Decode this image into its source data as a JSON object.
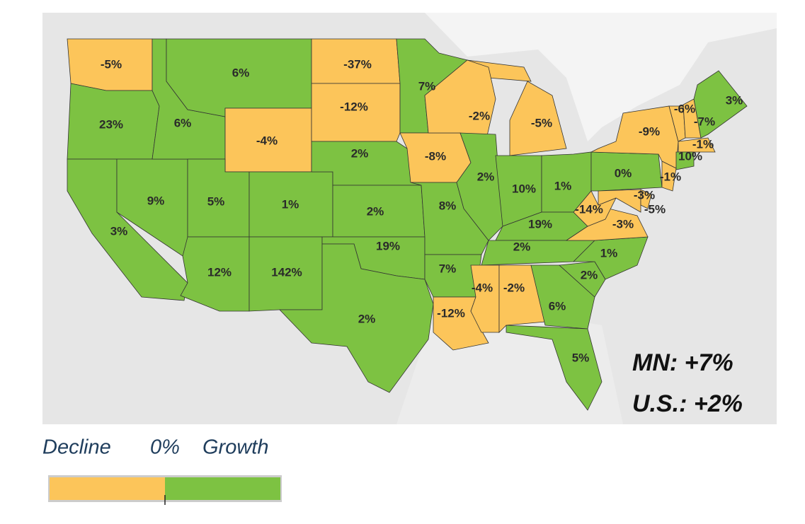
{
  "states": [
    {
      "label": "-5%",
      "color": "#fcc55a"
    },
    {
      "label": "23%",
      "color": "#7dc242"
    },
    {
      "label": "3%",
      "color": "#7dc242"
    },
    {
      "label": "9%",
      "color": "#7dc242"
    },
    {
      "label": "6%",
      "color": "#7dc242"
    },
    {
      "label": "6%",
      "color": "#7dc242"
    },
    {
      "label": "-4%",
      "color": "#fcc55a"
    },
    {
      "label": "5%",
      "color": "#7dc242"
    },
    {
      "label": "1%",
      "color": "#7dc242"
    },
    {
      "label": "12%",
      "color": "#7dc242"
    },
    {
      "label": "142%",
      "color": "#7dc242"
    },
    {
      "label": "-37%",
      "color": "#fcc55a"
    },
    {
      "label": "-12%",
      "color": "#fcc55a"
    },
    {
      "label": "2%",
      "color": "#7dc242"
    },
    {
      "label": "2%",
      "color": "#7dc242"
    },
    {
      "label": "19%",
      "color": "#7dc242"
    },
    {
      "label": "2%",
      "color": "#7dc242"
    },
    {
      "label": "7%",
      "color": "#7dc242"
    },
    {
      "label": "-8%",
      "color": "#fcc55a"
    },
    {
      "label": "8%",
      "color": "#7dc242"
    },
    {
      "label": "7%",
      "color": "#7dc242"
    },
    {
      "label": "-12%",
      "color": "#fcc55a"
    },
    {
      "label": "-2%",
      "color": "#fcc55a"
    },
    {
      "label": "2%",
      "color": "#7dc242"
    },
    {
      "label": "-5%",
      "color": "#fcc55a"
    },
    {
      "label": "10%",
      "color": "#7dc242"
    },
    {
      "label": "1%",
      "color": "#7dc242"
    },
    {
      "label": "19%",
      "color": "#7dc242"
    },
    {
      "label": "2%",
      "color": "#7dc242"
    },
    {
      "label": "-4%",
      "color": "#fcc55a"
    },
    {
      "label": "-2%",
      "color": "#fcc55a"
    },
    {
      "label": "6%",
      "color": "#7dc242"
    },
    {
      "label": "5%",
      "color": "#7dc242"
    },
    {
      "label": "2%",
      "color": "#7dc242"
    },
    {
      "label": "1%",
      "color": "#7dc242"
    },
    {
      "label": "-3%",
      "color": "#fcc55a"
    },
    {
      "label": "-14%",
      "color": "#fcc55a"
    },
    {
      "label": "0%",
      "color": "#7dc242"
    },
    {
      "label": "-9%",
      "color": "#fcc55a"
    },
    {
      "label": "-3%",
      "color": "#fcc55a"
    },
    {
      "label": "-1%",
      "color": "#fcc55a"
    },
    {
      "label": "-5%",
      "color": "#fcc55a"
    },
    {
      "label": "-6%",
      "color": "#fcc55a"
    },
    {
      "label": "-7%",
      "color": "#fcc55a"
    },
    {
      "label": "3%",
      "color": "#7dc242"
    },
    {
      "label": "-1%",
      "color": "#fcc55a"
    },
    {
      "label": "10%",
      "color": "#7dc242"
    }
  ],
  "annotations": [
    "MN:  +7%",
    "U.S.: +2%"
  ],
  "legend": {
    "decline": "Decline",
    "zero": "0%",
    "growth": "Growth",
    "decline_color": "#fcc55a",
    "growth_color": "#7dc242"
  }
}
